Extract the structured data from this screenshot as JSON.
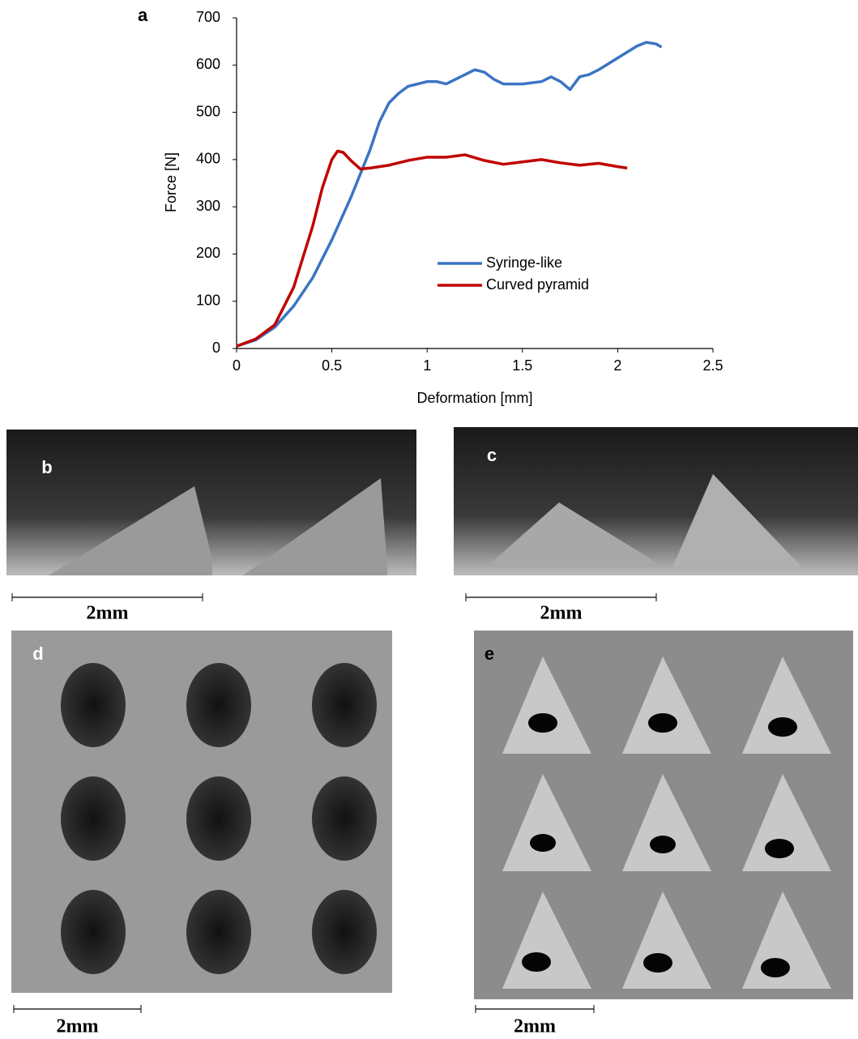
{
  "chart_data": {
    "type": "line",
    "panel_label": "a",
    "x_label": "Deformation [mm]",
    "y_label": "Force [N]",
    "xlim": [
      0,
      2.5
    ],
    "xticks": [
      0,
      0.5,
      1,
      1.5,
      2,
      2.5
    ],
    "ylim": [
      0,
      700
    ],
    "yticks": [
      0,
      100,
      200,
      300,
      400,
      500,
      600,
      700
    ],
    "grid": false,
    "legend": "lower right",
    "series": [
      {
        "name": "Syringe-like",
        "color": "#3b74c4",
        "x": [
          0,
          0.1,
          0.2,
          0.3,
          0.4,
          0.5,
          0.6,
          0.7,
          0.75,
          0.8,
          0.85,
          0.9,
          1.0,
          1.05,
          1.1,
          1.2,
          1.25,
          1.3,
          1.35,
          1.4,
          1.5,
          1.6,
          1.65,
          1.7,
          1.75,
          1.8,
          1.85,
          1.9,
          2.0,
          2.1,
          2.15,
          2.2,
          2.23
        ],
        "values": [
          5,
          18,
          45,
          90,
          150,
          230,
          320,
          420,
          480,
          520,
          540,
          555,
          565,
          565,
          560,
          580,
          590,
          585,
          570,
          560,
          560,
          565,
          575,
          565,
          548,
          575,
          580,
          590,
          615,
          640,
          648,
          645,
          638
        ]
      },
      {
        "name": "Curved pyramid",
        "color": "#c00000",
        "x": [
          0,
          0.1,
          0.2,
          0.3,
          0.4,
          0.45,
          0.5,
          0.53,
          0.56,
          0.6,
          0.65,
          0.7,
          0.8,
          0.9,
          1.0,
          1.1,
          1.2,
          1.3,
          1.4,
          1.5,
          1.6,
          1.7,
          1.8,
          1.9,
          2.0,
          2.05
        ],
        "values": [
          5,
          20,
          50,
          130,
          260,
          340,
          400,
          418,
          415,
          398,
          380,
          382,
          388,
          398,
          405,
          405,
          410,
          398,
          390,
          395,
          400,
          393,
          388,
          392,
          385,
          382
        ]
      }
    ]
  },
  "panels": [
    {
      "label": "b",
      "scale_bar": "2mm"
    },
    {
      "label": "c",
      "scale_bar": "2mm"
    },
    {
      "label": "d",
      "scale_bar": "2mm"
    },
    {
      "label": "e",
      "scale_bar": "2mm"
    }
  ]
}
